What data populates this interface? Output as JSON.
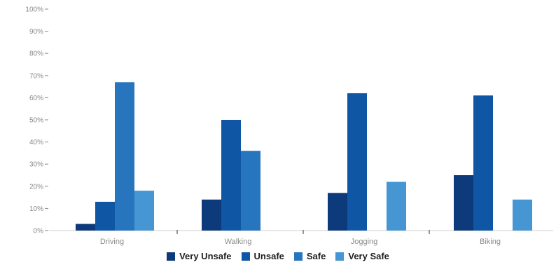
{
  "chart_data": {
    "type": "bar",
    "categories": [
      "Driving",
      "Walking",
      "Jogging",
      "Biking"
    ],
    "series": [
      {
        "name": "Very Unsafe",
        "color": "#0d3a7a",
        "values": [
          3,
          14,
          17,
          25
        ]
      },
      {
        "name": "Unsafe",
        "color": "#0f57a5",
        "values": [
          13,
          50,
          62,
          61
        ]
      },
      {
        "name": "Safe",
        "color": "#2675bd",
        "values": [
          67,
          36,
          0,
          0
        ]
      },
      {
        "name": "Very Safe",
        "color": "#4596d2",
        "values": [
          18,
          0,
          22,
          14
        ]
      }
    ],
    "y_ticks": [
      "0%",
      "10%",
      "20%",
      "30%",
      "40%",
      "50%",
      "60%",
      "70%",
      "80%",
      "90%",
      "100%"
    ],
    "ylim": [
      0,
      100
    ],
    "grid": false,
    "legend_position": "bottom"
  }
}
